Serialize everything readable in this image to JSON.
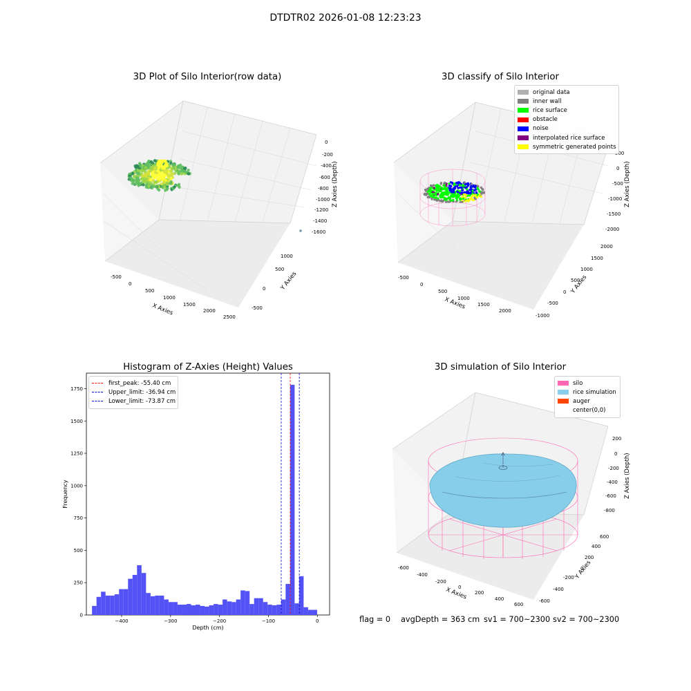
{
  "figure": {
    "suptitle": "DTDTR02 2026-01-08 12:23:23",
    "status": {
      "flag": "flag = 0",
      "avg_depth": "avgDepth = 363 cm",
      "sv1": "sv1 = 700~2300",
      "sv2": "sv2 = 700~2300"
    }
  },
  "chart_data": [
    {
      "type": "scatter3d",
      "title": "3D Plot of Silo Interior(row data)",
      "xlabel": "X Axies",
      "ylabel": "Y Axies",
      "zlabel": "Z Axies (Depth)",
      "x_ticks": [
        "-500",
        "0",
        "500",
        "1000",
        "1500",
        "2000",
        "2500"
      ],
      "y_ticks": [
        "-500",
        "0",
        "500",
        "1000",
        "1500"
      ],
      "z_ticks": [
        "0",
        "-200",
        "-400",
        "-600",
        "-800",
        "-1000",
        "-1200",
        "-1400",
        "-1600"
      ],
      "colormap": [
        "#2e8b57",
        "#5fbf5f",
        "#9ad54a",
        "#d4e23a",
        "#ffff33"
      ]
    },
    {
      "type": "scatter3d",
      "title": "3D classify of Silo Interior",
      "xlabel": "X Axies",
      "ylabel": "Y Axies",
      "zlabel": "Z Axies (Depth)",
      "x_ticks": [
        "-500",
        "0",
        "500",
        "1000",
        "1500",
        "2000"
      ],
      "y_ticks": [
        "-1000",
        "-500",
        "0",
        "500",
        "1000",
        "1500",
        "2000"
      ],
      "z_ticks": [
        "500",
        "0",
        "-500",
        "-1000",
        "-1500",
        "-2000"
      ],
      "legend_position": "top-right",
      "legend": [
        {
          "label": "original data",
          "color": "#b0b0b0"
        },
        {
          "label": "inner wall",
          "color": "#808080"
        },
        {
          "label": "rice surface",
          "color": "#00ff00"
        },
        {
          "label": "obstacle",
          "color": "#ff0000"
        },
        {
          "label": "noise",
          "color": "#0000ff"
        },
        {
          "label": "interpolated rice surface",
          "color": "#800080"
        },
        {
          "label": "symmetric generated points",
          "color": "#ffff00"
        }
      ]
    },
    {
      "type": "bar",
      "title": "Histogram of Z-Axies (Height) Values",
      "xlabel": "Depth (cm)",
      "ylabel": "Frequency",
      "xlim": [
        -472,
        25
      ],
      "ylim": [
        0,
        1870
      ],
      "x_ticks": [
        -400,
        -300,
        -200,
        -100,
        0
      ],
      "y_ticks": [
        0,
        250,
        500,
        750,
        1000,
        1250,
        1500,
        1750
      ],
      "bar_color": "#5050f5",
      "bins": {
        "start": -460.5,
        "width": 9.2,
        "values": [
          70,
          140,
          180,
          150,
          150,
          160,
          200,
          200,
          280,
          310,
          385,
          325,
          170,
          145,
          150,
          150,
          120,
          100,
          100,
          80,
          80,
          85,
          75,
          80,
          70,
          65,
          75,
          85,
          80,
          120,
          105,
          100,
          120,
          190,
          185,
          85,
          130,
          130,
          100,
          80,
          75,
          80,
          120,
          240,
          1780,
          90,
          300,
          60,
          40,
          40
        ]
      },
      "vlines": [
        {
          "label": "first_peak: -55.40 cm",
          "x": -55.4,
          "color": "#ff0000"
        },
        {
          "label": "Upper_limit: -36.94 cm",
          "x": -36.94,
          "color": "#0000cc"
        },
        {
          "label": "Lower_limit: -73.87 cm",
          "x": -73.87,
          "color": "#0000cc"
        }
      ],
      "legend_position": "top-left"
    },
    {
      "type": "surface3d",
      "title": "3D simulation of Silo Interior",
      "xlabel": "X Axies",
      "ylabel": "Y Axies",
      "zlabel": "Z Axies (Depth)",
      "x_ticks": [
        "-600",
        "-400",
        "-200",
        "0",
        "200",
        "400",
        "600"
      ],
      "y_ticks": [
        "-600",
        "-400",
        "-200",
        "0",
        "200",
        "400",
        "600"
      ],
      "z_ticks": [
        "200",
        "0",
        "-200",
        "-400",
        "-600",
        "-800"
      ],
      "legend_position": "top-right",
      "legend": [
        {
          "label": "silo",
          "color": "#ff69b4"
        },
        {
          "label": "rice simulation",
          "color": "#87ceeb"
        },
        {
          "label": "auger",
          "color": "#ff4500"
        },
        {
          "label": "center(0,0)",
          "color": ""
        }
      ]
    }
  ]
}
